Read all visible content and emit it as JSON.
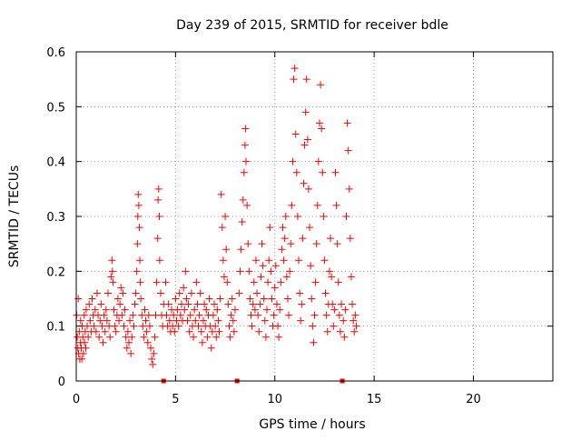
{
  "chart_data": {
    "type": "scatter",
    "title": "Day 239 of 2015, SRMTID for receiver bdle",
    "xlabel": "GPS time / hours",
    "ylabel": "SRMTID / TECUs",
    "xlim": [
      0,
      24
    ],
    "ylim": [
      0,
      0.6
    ],
    "x_ticks": [
      0,
      5,
      10,
      15,
      20
    ],
    "y_ticks": [
      0,
      0.1,
      0.2,
      0.3,
      0.4,
      0.5,
      0.6
    ],
    "x_tick_labels": [
      "0",
      "5",
      "10",
      "15",
      "20"
    ],
    "y_tick_labels": [
      "0",
      "0.1",
      "0.2",
      "0.3",
      "0.4",
      "0.5",
      "0.6"
    ],
    "grid": true,
    "marker": "+",
    "marker_color": "#ff0000",
    "gap_marker_color": "#ff0000",
    "data_gaps_x": [
      4.4,
      8.1,
      13.4
    ],
    "series": [
      {
        "name": "SRMTID",
        "points": [
          [
            0.02,
            0.12
          ],
          [
            0.05,
            0.08
          ],
          [
            0.08,
            0.06
          ],
          [
            0.1,
            0.15
          ],
          [
            0.12,
            0.05
          ],
          [
            0.15,
            0.09
          ],
          [
            0.18,
            0.04
          ],
          [
            0.2,
            0.07
          ],
          [
            0.22,
            0.11
          ],
          [
            0.25,
            0.06
          ],
          [
            0.28,
            0.04
          ],
          [
            0.3,
            0.1
          ],
          [
            0.33,
            0.08
          ],
          [
            0.36,
            0.05
          ],
          [
            0.4,
            0.12
          ],
          [
            0.42,
            0.07
          ],
          [
            0.45,
            0.09
          ],
          [
            0.48,
            0.06
          ],
          [
            0.5,
            0.13
          ],
          [
            0.55,
            0.1
          ],
          [
            0.6,
            0.08
          ],
          [
            0.65,
            0.14
          ],
          [
            0.7,
            0.11
          ],
          [
            0.75,
            0.09
          ],
          [
            0.8,
            0.15
          ],
          [
            0.85,
            0.12
          ],
          [
            0.9,
            0.1
          ],
          [
            0.95,
            0.13
          ],
          [
            1.0,
            0.09
          ],
          [
            1.05,
            0.16
          ],
          [
            1.1,
            0.12
          ],
          [
            1.15,
            0.08
          ],
          [
            1.2,
            0.11
          ],
          [
            1.25,
            0.14
          ],
          [
            1.3,
            0.1
          ],
          [
            1.35,
            0.07
          ],
          [
            1.4,
            0.12
          ],
          [
            1.45,
            0.09
          ],
          [
            1.5,
            0.13
          ],
          [
            1.55,
            0.11
          ],
          [
            1.6,
            0.16
          ],
          [
            1.65,
            0.1
          ],
          [
            1.7,
            0.08
          ],
          [
            1.75,
            0.19
          ],
          [
            1.8,
            0.22
          ],
          [
            1.82,
            0.2
          ],
          [
            1.85,
            0.18
          ],
          [
            1.9,
            0.13
          ],
          [
            1.95,
            0.1
          ],
          [
            2.0,
            0.09
          ],
          [
            2.05,
            0.12
          ],
          [
            2.1,
            0.15
          ],
          [
            2.15,
            0.11
          ],
          [
            2.2,
            0.14
          ],
          [
            2.25,
            0.17
          ],
          [
            2.3,
            0.12
          ],
          [
            2.35,
            0.16
          ],
          [
            2.4,
            0.1
          ],
          [
            2.45,
            0.13
          ],
          [
            2.5,
            0.08
          ],
          [
            2.55,
            0.06
          ],
          [
            2.6,
            0.09
          ],
          [
            2.65,
            0.07
          ],
          [
            2.7,
            0.11
          ],
          [
            2.75,
            0.05
          ],
          [
            2.8,
            0.08
          ],
          [
            2.85,
            0.12
          ],
          [
            2.9,
            0.1
          ],
          [
            2.95,
            0.14
          ],
          [
            3.0,
            0.16
          ],
          [
            3.05,
            0.2
          ],
          [
            3.08,
            0.25
          ],
          [
            3.1,
            0.3
          ],
          [
            3.12,
            0.34
          ],
          [
            3.15,
            0.32
          ],
          [
            3.18,
            0.28
          ],
          [
            3.2,
            0.22
          ],
          [
            3.22,
            0.18
          ],
          [
            3.25,
            0.15
          ],
          [
            3.3,
            0.12
          ],
          [
            3.35,
            0.1
          ],
          [
            3.4,
            0.08
          ],
          [
            3.45,
            0.13
          ],
          [
            3.5,
            0.11
          ],
          [
            3.55,
            0.09
          ],
          [
            3.6,
            0.07
          ],
          [
            3.65,
            0.12
          ],
          [
            3.7,
            0.1
          ],
          [
            3.75,
            0.06
          ],
          [
            3.8,
            0.04
          ],
          [
            3.85,
            0.03
          ],
          [
            3.9,
            0.05
          ],
          [
            3.95,
            0.08
          ],
          [
            4.0,
            0.12
          ],
          [
            4.05,
            0.18
          ],
          [
            4.1,
            0.26
          ],
          [
            4.12,
            0.33
          ],
          [
            4.15,
            0.35
          ],
          [
            4.18,
            0.3
          ],
          [
            4.2,
            0.22
          ],
          [
            4.25,
            0.16
          ],
          [
            4.3,
            0.12
          ],
          [
            4.35,
            0.1
          ],
          [
            4.4,
            0.14
          ],
          [
            4.5,
            0.18
          ],
          [
            4.55,
            0.12
          ],
          [
            4.6,
            0.1
          ],
          [
            4.65,
            0.14
          ],
          [
            4.7,
            0.11
          ],
          [
            4.75,
            0.09
          ],
          [
            4.8,
            0.13
          ],
          [
            4.85,
            0.1
          ],
          [
            4.9,
            0.12
          ],
          [
            4.95,
            0.09
          ],
          [
            5.0,
            0.15
          ],
          [
            5.05,
            0.11
          ],
          [
            5.1,
            0.13
          ],
          [
            5.15,
            0.1
          ],
          [
            5.2,
            0.16
          ],
          [
            5.25,
            0.12
          ],
          [
            5.3,
            0.14
          ],
          [
            5.35,
            0.11
          ],
          [
            5.4,
            0.17
          ],
          [
            5.45,
            0.13
          ],
          [
            5.5,
            0.2
          ],
          [
            5.55,
            0.15
          ],
          [
            5.6,
            0.11
          ],
          [
            5.65,
            0.14
          ],
          [
            5.7,
            0.09
          ],
          [
            5.75,
            0.12
          ],
          [
            5.8,
            0.16
          ],
          [
            5.85,
            0.1
          ],
          [
            5.9,
            0.08
          ],
          [
            5.95,
            0.13
          ],
          [
            6.0,
            0.11
          ],
          [
            6.05,
            0.18
          ],
          [
            6.1,
            0.14
          ],
          [
            6.15,
            0.1
          ],
          [
            6.2,
            0.12
          ],
          [
            6.25,
            0.16
          ],
          [
            6.3,
            0.09
          ],
          [
            6.35,
            0.07
          ],
          [
            6.4,
            0.11
          ],
          [
            6.45,
            0.14
          ],
          [
            6.5,
            0.1
          ],
          [
            6.55,
            0.13
          ],
          [
            6.6,
            0.08
          ],
          [
            6.65,
            0.12
          ],
          [
            6.7,
            0.15
          ],
          [
            6.75,
            0.1
          ],
          [
            6.8,
            0.06
          ],
          [
            6.85,
            0.09
          ],
          [
            6.9,
            0.12
          ],
          [
            6.95,
            0.14
          ],
          [
            7.0,
            0.1
          ],
          [
            7.05,
            0.08
          ],
          [
            7.1,
            0.13
          ],
          [
            7.15,
            0.11
          ],
          [
            7.2,
            0.09
          ],
          [
            7.25,
            0.15
          ],
          [
            7.3,
            0.34
          ],
          [
            7.35,
            0.28
          ],
          [
            7.4,
            0.22
          ],
          [
            7.45,
            0.19
          ],
          [
            7.5,
            0.3
          ],
          [
            7.55,
            0.24
          ],
          [
            7.6,
            0.18
          ],
          [
            7.65,
            0.14
          ],
          [
            7.7,
            0.1
          ],
          [
            7.75,
            0.08
          ],
          [
            7.8,
            0.12
          ],
          [
            7.85,
            0.15
          ],
          [
            7.9,
            0.11
          ],
          [
            7.95,
            0.09
          ],
          [
            8.0,
            0.13
          ],
          [
            8.2,
            0.16
          ],
          [
            8.25,
            0.2
          ],
          [
            8.3,
            0.24
          ],
          [
            8.35,
            0.29
          ],
          [
            8.4,
            0.33
          ],
          [
            8.45,
            0.38
          ],
          [
            8.5,
            0.43
          ],
          [
            8.52,
            0.46
          ],
          [
            8.55,
            0.4
          ],
          [
            8.6,
            0.32
          ],
          [
            8.65,
            0.25
          ],
          [
            8.7,
            0.2
          ],
          [
            8.75,
            0.15
          ],
          [
            8.8,
            0.12
          ],
          [
            8.85,
            0.1
          ],
          [
            8.9,
            0.14
          ],
          [
            8.95,
            0.18
          ],
          [
            9.0,
            0.13
          ],
          [
            9.05,
            0.22
          ],
          [
            9.1,
            0.16
          ],
          [
            9.15,
            0.12
          ],
          [
            9.2,
            0.09
          ],
          [
            9.25,
            0.14
          ],
          [
            9.3,
            0.19
          ],
          [
            9.35,
            0.25
          ],
          [
            9.4,
            0.21
          ],
          [
            9.45,
            0.15
          ],
          [
            9.5,
            0.11
          ],
          [
            9.55,
            0.08
          ],
          [
            9.6,
            0.13
          ],
          [
            9.65,
            0.18
          ],
          [
            9.7,
            0.22
          ],
          [
            9.75,
            0.28
          ],
          [
            9.8,
            0.2
          ],
          [
            9.85,
            0.15
          ],
          [
            9.9,
            0.1
          ],
          [
            9.95,
            0.12
          ],
          [
            10.0,
            0.17
          ],
          [
            10.05,
            0.21
          ],
          [
            10.1,
            0.14
          ],
          [
            10.15,
            0.1
          ],
          [
            10.2,
            0.08
          ],
          [
            10.25,
            0.13
          ],
          [
            10.3,
            0.18
          ],
          [
            10.35,
            0.24
          ],
          [
            10.4,
            0.28
          ],
          [
            10.45,
            0.22
          ],
          [
            10.5,
            0.26
          ],
          [
            10.55,
            0.3
          ],
          [
            10.6,
            0.19
          ],
          [
            10.65,
            0.15
          ],
          [
            10.7,
            0.12
          ],
          [
            10.75,
            0.2
          ],
          [
            10.8,
            0.25
          ],
          [
            10.85,
            0.32
          ],
          [
            10.9,
            0.4
          ],
          [
            10.95,
            0.55
          ],
          [
            11.0,
            0.57
          ],
          [
            11.05,
            0.45
          ],
          [
            11.1,
            0.38
          ],
          [
            11.15,
            0.3
          ],
          [
            11.2,
            0.22
          ],
          [
            11.25,
            0.16
          ],
          [
            11.3,
            0.11
          ],
          [
            11.35,
            0.14
          ],
          [
            11.4,
            0.26
          ],
          [
            11.45,
            0.36
          ],
          [
            11.5,
            0.43
          ],
          [
            11.55,
            0.49
          ],
          [
            11.6,
            0.55
          ],
          [
            11.65,
            0.44
          ],
          [
            11.7,
            0.35
          ],
          [
            11.75,
            0.28
          ],
          [
            11.8,
            0.21
          ],
          [
            11.85,
            0.15
          ],
          [
            11.9,
            0.1
          ],
          [
            11.95,
            0.07
          ],
          [
            12.0,
            0.12
          ],
          [
            12.05,
            0.18
          ],
          [
            12.1,
            0.25
          ],
          [
            12.15,
            0.32
          ],
          [
            12.2,
            0.4
          ],
          [
            12.25,
            0.47
          ],
          [
            12.3,
            0.54
          ],
          [
            12.35,
            0.46
          ],
          [
            12.4,
            0.38
          ],
          [
            12.45,
            0.3
          ],
          [
            12.5,
            0.22
          ],
          [
            12.55,
            0.16
          ],
          [
            12.6,
            0.12
          ],
          [
            12.65,
            0.09
          ],
          [
            12.7,
            0.14
          ],
          [
            12.75,
            0.2
          ],
          [
            12.8,
            0.26
          ],
          [
            12.85,
            0.19
          ],
          [
            12.9,
            0.14
          ],
          [
            12.95,
            0.1
          ],
          [
            13.0,
            0.13
          ],
          [
            13.05,
            0.38
          ],
          [
            13.1,
            0.32
          ],
          [
            13.15,
            0.25
          ],
          [
            13.2,
            0.18
          ],
          [
            13.25,
            0.12
          ],
          [
            13.3,
            0.09
          ],
          [
            13.35,
            0.14
          ],
          [
            13.45,
            0.11
          ],
          [
            13.5,
            0.08
          ],
          [
            13.55,
            0.13
          ],
          [
            13.6,
            0.3
          ],
          [
            13.65,
            0.47
          ],
          [
            13.7,
            0.42
          ],
          [
            13.75,
            0.35
          ],
          [
            13.8,
            0.26
          ],
          [
            13.85,
            0.19
          ],
          [
            13.9,
            0.14
          ],
          [
            13.95,
            0.11
          ],
          [
            14.0,
            0.09
          ],
          [
            14.05,
            0.12
          ],
          [
            14.1,
            0.1
          ]
        ]
      }
    ]
  }
}
